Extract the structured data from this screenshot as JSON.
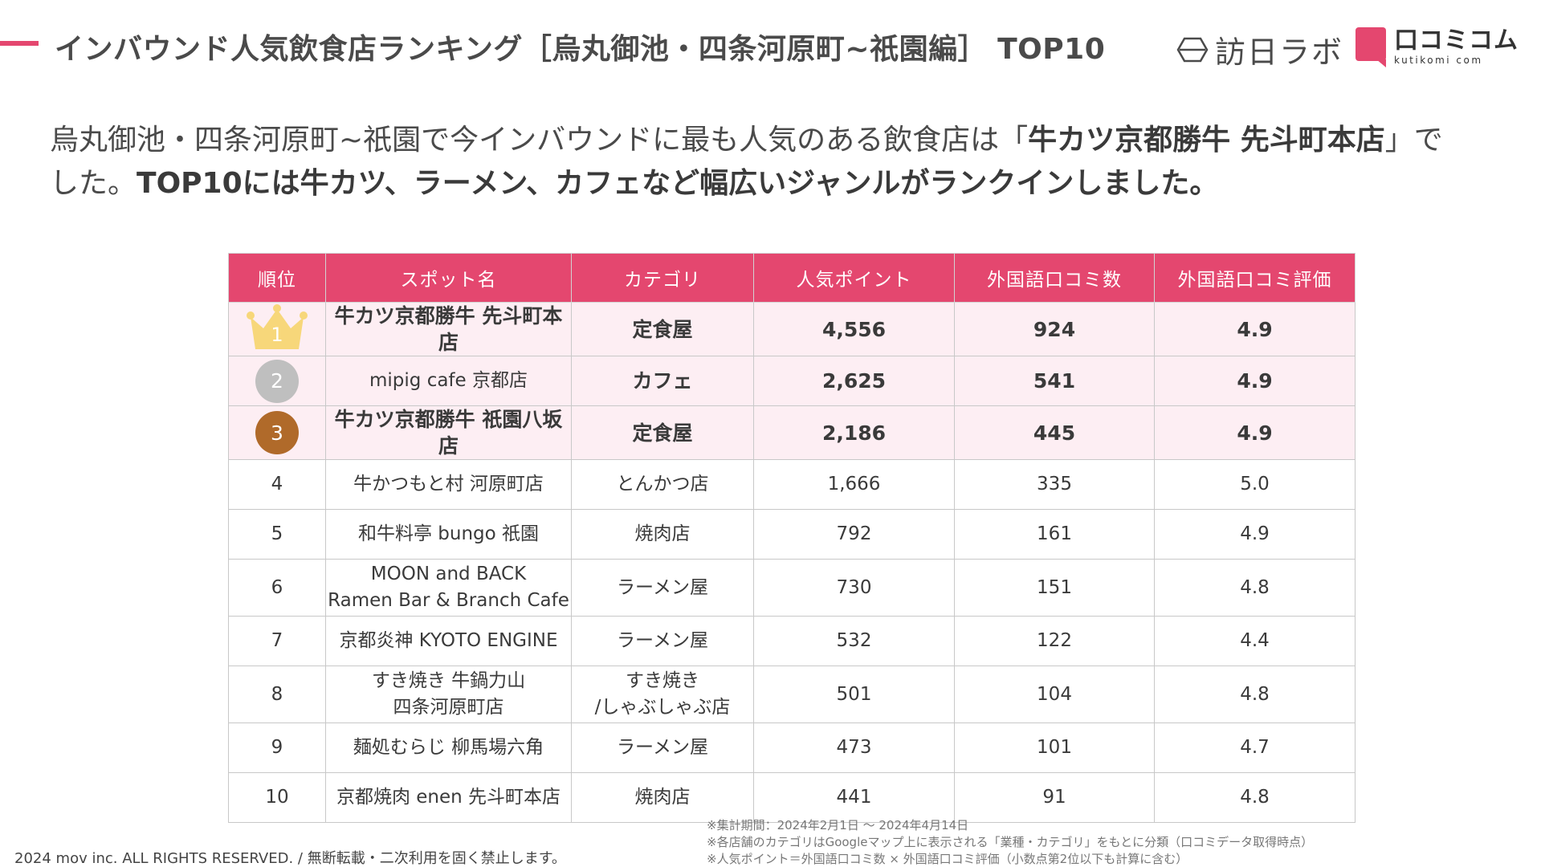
{
  "header": {
    "title": "インバウンド人気飲食店ランキング［烏丸御池・四条河原町~祇園編］ TOP10",
    "logo_houn": "訪日ラボ",
    "logo_kk_ja": "口コミコム",
    "logo_kk_en": "kutikomi com"
  },
  "summary": {
    "line1_pre": "烏丸御池・四条河原町~祇園で今インバウンドに最も人気のある飲食店は「",
    "line1_bold": "牛カツ京都勝牛 先斗町本店",
    "line1_post": "」で",
    "line2_pre": "した。",
    "line2_bold": "TOP10には牛カツ、ラーメン、カフェなど幅広いジャンルがランクインしました。"
  },
  "table": {
    "headers": [
      "順位",
      "スポット名",
      "カテゴリ",
      "人気ポイント",
      "外国語口コミ数",
      "外国語口コミ評価"
    ],
    "rows": [
      {
        "rank": "1",
        "name": "牛カツ京都勝牛 先斗町本店",
        "category": "定食屋",
        "points": "4,556",
        "reviews": "924",
        "rating": "4.9"
      },
      {
        "rank": "2",
        "name": "mipig cafe 京都店",
        "category": "カフェ",
        "points": "2,625",
        "reviews": "541",
        "rating": "4.9"
      },
      {
        "rank": "3",
        "name": "牛カツ京都勝牛 祇園八坂店",
        "category": "定食屋",
        "points": "2,186",
        "reviews": "445",
        "rating": "4.9"
      },
      {
        "rank": "4",
        "name": "牛かつもと村 河原町店",
        "category": "とんかつ店",
        "points": "1,666",
        "reviews": "335",
        "rating": "5.0"
      },
      {
        "rank": "5",
        "name": "和牛料亭 bungo 祇園",
        "category": "焼肉店",
        "points": "792",
        "reviews": "161",
        "rating": "4.9"
      },
      {
        "rank": "6",
        "name_l1": "MOON and BACK",
        "name_l2": "Ramen Bar & Branch Cafe",
        "category": "ラーメン屋",
        "points": "730",
        "reviews": "151",
        "rating": "4.8"
      },
      {
        "rank": "7",
        "name": "京都炎神 KYOTO ENGINE",
        "category": "ラーメン屋",
        "points": "532",
        "reviews": "122",
        "rating": "4.4"
      },
      {
        "rank": "8",
        "name_l1": "すき焼き 牛鍋力山",
        "name_l2": "四条河原町店",
        "category_l1": "すき焼き",
        "category_l2": "/しゃぶしゃぶ店",
        "points": "501",
        "reviews": "104",
        "rating": "4.8"
      },
      {
        "rank": "9",
        "name": "麺処むらじ 柳馬場六角",
        "category": "ラーメン屋",
        "points": "473",
        "reviews": "101",
        "rating": "4.7"
      },
      {
        "rank": "10",
        "name": "京都焼肉 enen 先斗町本店",
        "category": "焼肉店",
        "points": "441",
        "reviews": "91",
        "rating": "4.8"
      }
    ]
  },
  "footer": {
    "copyright": "2024 mov inc. ALL RIGHTS RESERVED. / 無断転載・二次利用を固く禁止します。",
    "notes": [
      "※集計期間：2024年2月1日 〜 2024年4月14日",
      "※各店舗のカテゴリはGoogleマップ上に表示される「業種・カテゴリ」をもとに分類（口コミデータ取得時点）",
      "※人気ポイント＝外国語口コミ数 × 外国語口コミ評価（小数点第2位以下も計算に含む）"
    ]
  },
  "colors": {
    "accent": "#e4476f",
    "row_highlight": "#fdeef3",
    "gold": "#f7d77a",
    "silver": "#bfbfbf",
    "bronze": "#b06a2a"
  }
}
